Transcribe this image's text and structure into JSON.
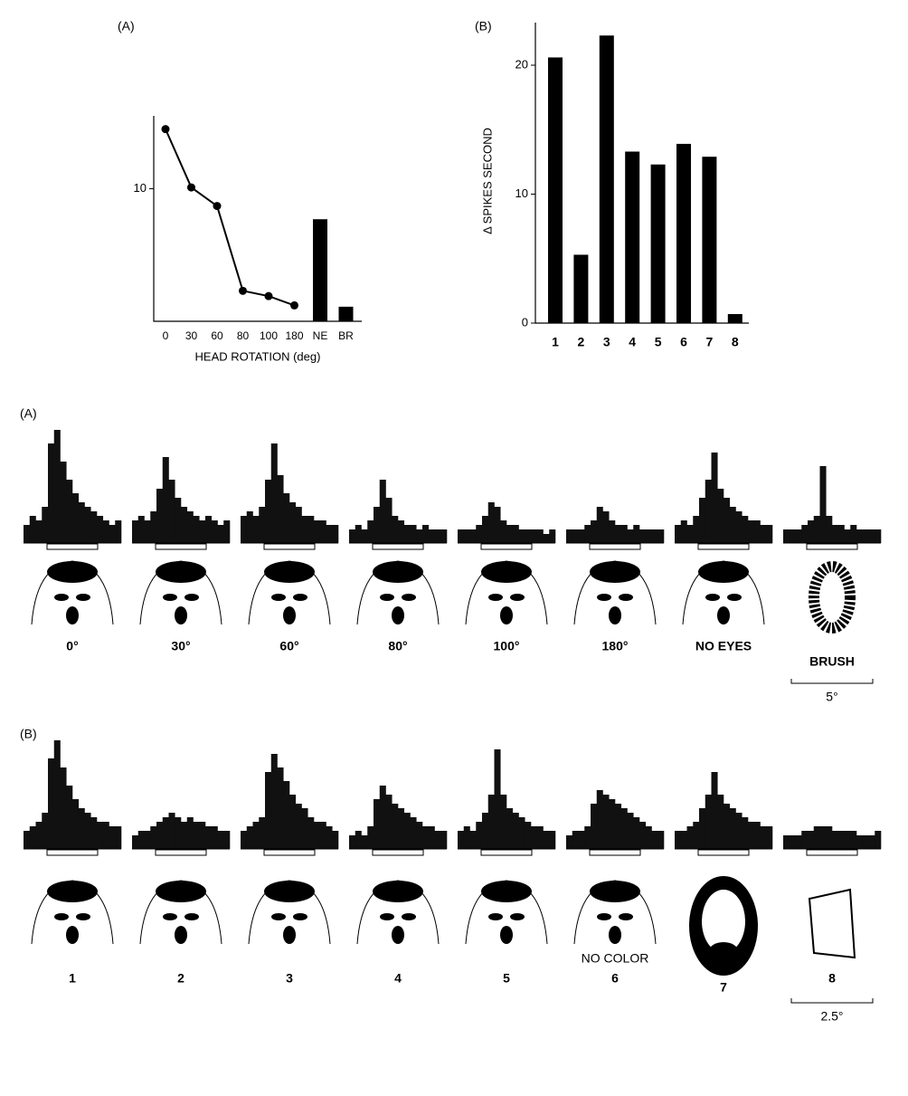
{
  "chart_data": [
    {
      "type": "line",
      "title": "(A)",
      "x_label": "HEAD ROTATION (deg)",
      "categories": [
        "0",
        "30",
        "60",
        "80",
        "100",
        "180",
        "NE",
        "BR"
      ],
      "series": [
        {
          "style": "line",
          "color": "#000000",
          "values": [
            14.5,
            10.1,
            8.7,
            2.3,
            1.9,
            1.2,
            null,
            null
          ]
        },
        {
          "style": "bar",
          "color": "#000000",
          "values": [
            null,
            null,
            null,
            null,
            null,
            null,
            7.7,
            1.1
          ]
        }
      ],
      "ylim": [
        0,
        15.5
      ],
      "yticks": [
        10
      ]
    },
    {
      "type": "bar",
      "title": "(B)",
      "y_label": "Δ SPIKES SECOND",
      "categories": [
        "1",
        "2",
        "3",
        "4",
        "5",
        "6",
        "7",
        "8"
      ],
      "values": [
        20.6,
        5.3,
        22.3,
        13.3,
        12.3,
        13.9,
        12.9,
        0.7
      ],
      "color": "#000000",
      "ylim": [
        0,
        23.3
      ],
      "yticks": [
        0,
        10,
        20
      ]
    }
  ],
  "figure": {
    "panel_a": {
      "label": "(A)",
      "psth": [
        [
          20,
          30,
          25,
          40,
          110,
          125,
          90,
          70,
          55,
          45,
          40,
          35,
          30,
          25,
          20,
          25
        ],
        [
          25,
          30,
          25,
          35,
          60,
          95,
          70,
          50,
          40,
          35,
          30,
          25,
          30,
          25,
          20,
          25
        ],
        [
          30,
          35,
          30,
          40,
          70,
          110,
          75,
          55,
          45,
          40,
          30,
          30,
          25,
          25,
          20,
          20
        ],
        [
          15,
          20,
          15,
          25,
          40,
          70,
          50,
          30,
          25,
          20,
          20,
          15,
          20,
          15,
          15,
          15
        ],
        [
          15,
          15,
          15,
          20,
          30,
          45,
          40,
          25,
          20,
          20,
          15,
          15,
          15,
          15,
          10,
          15
        ],
        [
          15,
          15,
          15,
          20,
          25,
          40,
          35,
          25,
          20,
          20,
          15,
          20,
          15,
          15,
          15,
          15
        ],
        [
          20,
          25,
          20,
          30,
          50,
          70,
          100,
          60,
          50,
          40,
          35,
          30,
          25,
          25,
          20,
          20
        ],
        [
          15,
          15,
          15,
          20,
          25,
          30,
          85,
          30,
          20,
          20,
          15,
          20,
          15,
          15,
          15,
          15
        ]
      ],
      "labels": [
        "0°",
        "30°",
        "60°",
        "80°",
        "100°",
        "180°",
        "NO EYES",
        "BRUSH"
      ],
      "scale": "5°"
    },
    "panel_b": {
      "label": "(B)",
      "psth": [
        [
          20,
          25,
          30,
          40,
          100,
          120,
          90,
          70,
          55,
          45,
          40,
          35,
          30,
          30,
          25,
          25
        ],
        [
          15,
          20,
          20,
          25,
          30,
          35,
          40,
          35,
          30,
          35,
          30,
          30,
          25,
          25,
          20,
          20
        ],
        [
          20,
          25,
          30,
          35,
          85,
          105,
          90,
          75,
          60,
          50,
          45,
          35,
          30,
          30,
          25,
          20
        ],
        [
          15,
          20,
          15,
          25,
          55,
          70,
          60,
          50,
          45,
          40,
          35,
          30,
          25,
          25,
          20,
          20
        ],
        [
          20,
          25,
          20,
          30,
          40,
          60,
          110,
          60,
          45,
          40,
          35,
          30,
          25,
          25,
          20,
          20
        ],
        [
          15,
          20,
          20,
          25,
          50,
          65,
          60,
          55,
          50,
          45,
          40,
          35,
          30,
          25,
          20,
          20
        ],
        [
          20,
          20,
          25,
          30,
          45,
          60,
          85,
          60,
          50,
          45,
          40,
          35,
          30,
          30,
          25,
          25
        ],
        [
          15,
          15,
          15,
          20,
          20,
          25,
          25,
          25,
          20,
          20,
          20,
          20,
          15,
          15,
          15,
          20
        ]
      ],
      "labels": [
        "1",
        "2",
        "3",
        "4",
        "5",
        "6",
        "7",
        "8"
      ],
      "annotation": "NO COLOR",
      "scale": "2.5°"
    }
  }
}
